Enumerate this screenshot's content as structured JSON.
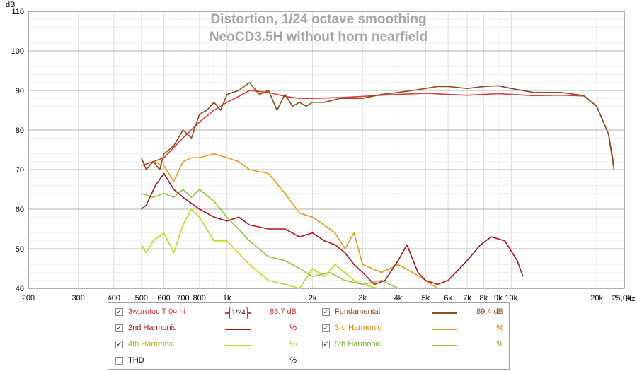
{
  "chart_data": {
    "type": "line",
    "title": "Distortion, 1/24 octave smoothing",
    "subtitle": "NeoCD3.5H without horn nearfield",
    "ylabel": "dB",
    "xunit": "Hz",
    "xscale": "log",
    "xlim": [
      200,
      25000
    ],
    "ylim": [
      40,
      110
    ],
    "grid": true,
    "x_ticks": [
      {
        "v": 200,
        "label": "200"
      },
      {
        "v": 300,
        "label": "300"
      },
      {
        "v": 400,
        "label": "400"
      },
      {
        "v": 500,
        "label": "500"
      },
      {
        "v": 600,
        "label": "600"
      },
      {
        "v": 700,
        "label": "700"
      },
      {
        "v": 800,
        "label": "800"
      },
      {
        "v": 1000,
        "label": "1k"
      },
      {
        "v": 2000,
        "label": "2k"
      },
      {
        "v": 3000,
        "label": "3k"
      },
      {
        "v": 4000,
        "label": "4k"
      },
      {
        "v": 5000,
        "label": "5k"
      },
      {
        "v": 6000,
        "label": "6k"
      },
      {
        "v": 7000,
        "label": "7k"
      },
      {
        "v": 8000,
        "label": "8k"
      },
      {
        "v": 9000,
        "label": "9k"
      },
      {
        "v": 10000,
        "label": "10k"
      },
      {
        "v": 20000,
        "label": "20k"
      },
      {
        "v": 25000,
        "label": "25,0k"
      }
    ],
    "y_ticks": [
      40,
      50,
      60,
      70,
      80,
      90,
      100,
      110
    ],
    "series": [
      {
        "name": "3wprotoc T 0¤ hi",
        "color": "#e0393e",
        "x": [
          500,
          550,
          600,
          700,
          800,
          900,
          1000,
          1100,
          1200,
          1400,
          1600,
          1800,
          2000,
          2500,
          3000,
          3500,
          4000,
          5000,
          6000,
          7000,
          8000,
          9000,
          10000,
          12000,
          15000,
          18000,
          20000,
          22000,
          23000
        ],
        "y": [
          71,
          72,
          73,
          78,
          82,
          85,
          87,
          88.5,
          90,
          89.5,
          88.5,
          88,
          88,
          88.2,
          88.5,
          88.8,
          89,
          89.3,
          89,
          88.8,
          89,
          89.2,
          89,
          88.7,
          88.8,
          88.6,
          86,
          79,
          71
        ]
      },
      {
        "name": "Fundamental",
        "color": "#8b4f1c",
        "x": [
          500,
          520,
          550,
          580,
          600,
          650,
          700,
          750,
          800,
          850,
          900,
          950,
          1000,
          1100,
          1200,
          1300,
          1400,
          1500,
          1600,
          1700,
          1800,
          1900,
          2000,
          2200,
          2500,
          3000,
          3500,
          4000,
          4500,
          5000,
          5500,
          6000,
          7000,
          8000,
          9000,
          10000,
          12000,
          15000,
          18000,
          20000,
          22000,
          23000
        ],
        "y": [
          73,
          70,
          72,
          70,
          74,
          76,
          80,
          78,
          84,
          85,
          87,
          85,
          89,
          90,
          92,
          89,
          90,
          85,
          89,
          86,
          87,
          86,
          87,
          87,
          88,
          88,
          89,
          89.5,
          90,
          90.5,
          91,
          91,
          90.5,
          91,
          91.2,
          90.5,
          89.5,
          89.5,
          88.7,
          86,
          79,
          70
        ]
      },
      {
        "name": "2nd Harmonic",
        "color": "#b01218",
        "x": [
          500,
          520,
          560,
          600,
          650,
          700,
          800,
          900,
          1000,
          1100,
          1200,
          1400,
          1600,
          1800,
          2000,
          2200,
          2400,
          2600,
          2800,
          3000,
          3300,
          3600,
          4000,
          4300,
          4700,
          5000,
          5500,
          6000,
          7000,
          7800,
          8500,
          9500,
          10500,
          11000
        ],
        "y": [
          60,
          61,
          66,
          69,
          65,
          63,
          60,
          58,
          57,
          58,
          56,
          55,
          55,
          53,
          54,
          52,
          51,
          49,
          46,
          44,
          41,
          42,
          47,
          51,
          44,
          42,
          41,
          42,
          47,
          51,
          53,
          52,
          47,
          43
        ]
      },
      {
        "name": "3rd Harmonic",
        "color": "#e69a1a",
        "x": [
          500,
          550,
          600,
          650,
          700,
          750,
          800,
          900,
          1000,
          1100,
          1200,
          1400,
          1600,
          1800,
          2000,
          2200,
          2400,
          2600,
          2800,
          3000,
          3500,
          4000,
          4500,
          5000,
          5500
        ],
        "y": [
          71,
          72,
          71,
          67,
          72,
          73,
          73,
          74,
          73,
          72,
          70,
          69,
          64,
          59,
          58,
          56,
          54,
          50,
          54,
          46,
          44,
          46,
          44,
          42,
          40
        ]
      },
      {
        "name": "4th Harmonic",
        "color": "#c7d31f",
        "x": [
          500,
          520,
          550,
          600,
          650,
          700,
          750,
          800,
          900,
          1000,
          1200,
          1400,
          1600,
          1800,
          2000,
          2200,
          2400,
          2600,
          2800,
          3000,
          3400
        ],
        "y": [
          51,
          49,
          52,
          54,
          49,
          56,
          60,
          58,
          52,
          52,
          46,
          42,
          41,
          40,
          45,
          43,
          46,
          44,
          42,
          41,
          40
        ]
      },
      {
        "name": "5th Harmonic",
        "color": "#8ec63f",
        "x": [
          500,
          550,
          600,
          650,
          700,
          750,
          800,
          900,
          1000,
          1200,
          1400,
          1600,
          1800,
          2000,
          2300,
          2600,
          3000,
          3500,
          4000
        ],
        "y": [
          64,
          63,
          64,
          63,
          65,
          63,
          65,
          62,
          58,
          52,
          48,
          47,
          45,
          43,
          44,
          42,
          41,
          42,
          40
        ]
      }
    ]
  },
  "legend": {
    "rows": [
      [
        {
          "checked": true,
          "label": "3wprotoc T 0¤ hi",
          "label_color": "#d0393e",
          "line_color": "#e0393e",
          "smoothing": "1/24",
          "value": "88,7 dB",
          "value_color": "#d0393e"
        },
        {
          "checked": true,
          "label": "Fundamental",
          "label_color": "#8b4f1c",
          "line_color": "#8b4f1c",
          "value": "89,4 dB",
          "value_color": "#8b4f1c"
        }
      ],
      [
        {
          "checked": true,
          "label": "2nd Harmonic",
          "label_color": "#b01218",
          "line_color": "#b01218",
          "value": "%",
          "value_color": "#b01218"
        },
        {
          "checked": true,
          "label": "3rd Harmonic",
          "label_color": "#c98a10",
          "line_color": "#e69a1a",
          "value": "%",
          "value_color": "#c98a10"
        }
      ],
      [
        {
          "checked": true,
          "label": "4th Harmonic",
          "label_color": "#aab51a",
          "line_color": "#c7d31f",
          "value": "%",
          "value_color": "#aab51a"
        },
        {
          "checked": true,
          "label": "5th Harmonic",
          "label_color": "#6fae2c",
          "line_color": "#8ec63f",
          "value": "%",
          "value_color": "#6fae2c"
        }
      ],
      [
        {
          "checked": false,
          "label": "THD",
          "label_color": "#000000",
          "line_color": null,
          "value": "%",
          "value_color": "#000000"
        }
      ]
    ]
  }
}
